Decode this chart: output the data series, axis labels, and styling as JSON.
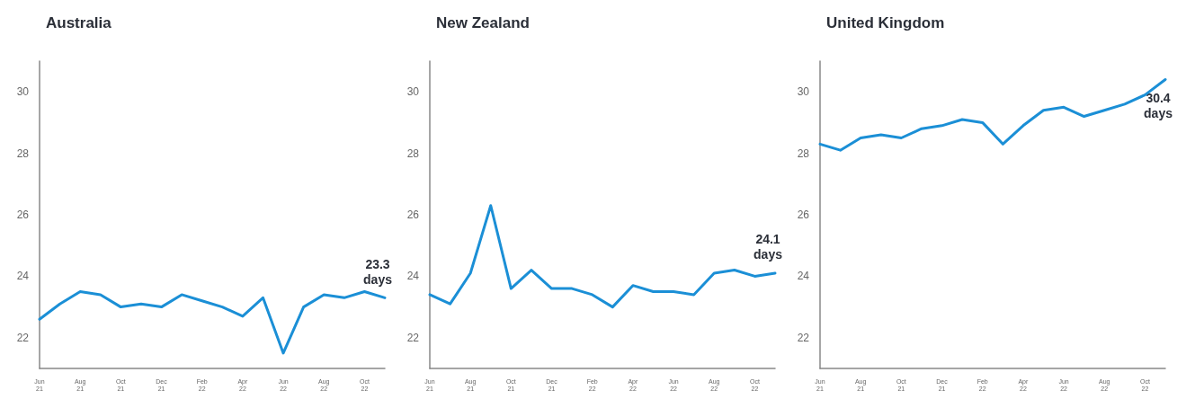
{
  "chart_data": [
    {
      "type": "line",
      "title": "Australia",
      "categories": [
        "Jun\n21",
        null,
        "Aug\n21",
        null,
        "Oct\n21",
        null,
        "Dec\n21",
        null,
        "Feb\n22",
        null,
        "Apr\n22",
        null,
        "Jun\n22",
        null,
        "Aug\n22",
        null,
        "Oct\n22",
        null
      ],
      "series": [
        {
          "color": "#1b8fd6",
          "values": [
            22.6,
            23.1,
            23.5,
            23.4,
            23.0,
            23.1,
            23.0,
            23.4,
            23.2,
            23.0,
            22.7,
            23.3,
            21.5,
            23.0,
            23.4,
            23.3,
            23.5,
            23.3
          ]
        }
      ],
      "annotations": [
        {
          "text": "23.3\ndays",
          "y": 23.3
        }
      ],
      "ylim": [
        21,
        31
      ],
      "yticks": [
        22,
        24,
        26,
        28,
        30
      ],
      "grid": false,
      "marker": "none",
      "line_style": "solid"
    },
    {
      "type": "line",
      "title": "New Zealand",
      "categories": [
        "Jun\n21",
        null,
        "Aug\n21",
        null,
        "Oct\n21",
        null,
        "Dec\n21",
        null,
        "Feb\n22",
        null,
        "Apr\n22",
        null,
        "Jun\n22",
        null,
        "Aug\n22",
        null,
        "Oct\n22",
        null
      ],
      "series": [
        {
          "color": "#1b8fd6",
          "values": [
            23.4,
            23.1,
            24.1,
            26.3,
            23.6,
            24.2,
            23.6,
            23.6,
            23.4,
            23.0,
            23.7,
            23.5,
            23.5,
            23.4,
            24.1,
            24.2,
            24.0,
            24.1
          ]
        }
      ],
      "annotations": [
        {
          "text": "24.1\ndays",
          "y": 24.1
        }
      ],
      "ylim": [
        21,
        31
      ],
      "yticks": [
        22,
        24,
        26,
        28,
        30
      ],
      "grid": false,
      "marker": "none",
      "line_style": "solid"
    },
    {
      "type": "line",
      "title": "United Kingdom",
      "categories": [
        "Jun\n21",
        null,
        "Aug\n21",
        null,
        "Oct\n21",
        null,
        "Dec\n21",
        null,
        "Feb\n22",
        null,
        "Apr\n22",
        null,
        "Jun\n22",
        null,
        "Aug\n22",
        null,
        "Oct\n22",
        null
      ],
      "series": [
        {
          "color": "#1b8fd6",
          "values": [
            28.3,
            28.1,
            28.5,
            28.6,
            28.5,
            28.8,
            28.9,
            29.1,
            29.0,
            28.3,
            28.9,
            29.4,
            29.5,
            29.2,
            29.4,
            29.6,
            29.9,
            30.4
          ]
        }
      ],
      "annotations": [
        {
          "text": "30.4\ndays",
          "y": 30.4
        }
      ],
      "ylim": [
        21,
        31
      ],
      "yticks": [
        22,
        24,
        26,
        28,
        30
      ],
      "grid": false,
      "marker": "none",
      "line_style": "solid"
    }
  ]
}
